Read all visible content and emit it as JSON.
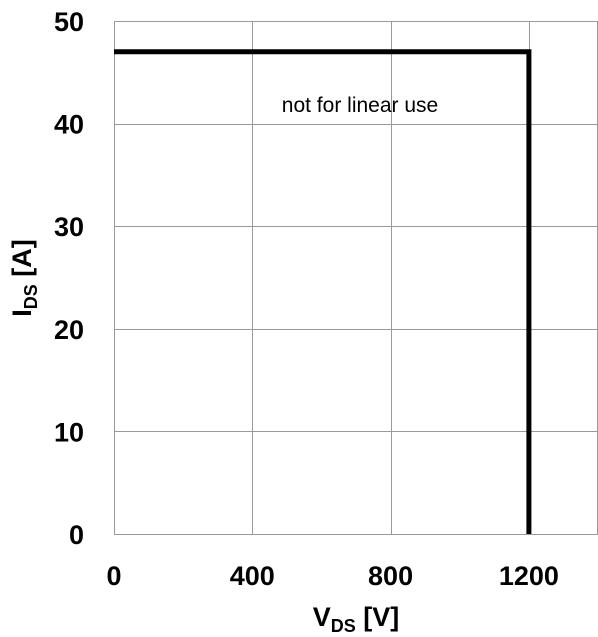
{
  "chart_data": {
    "type": "line",
    "title": "",
    "x_ticks": [
      "0",
      "400",
      "800",
      "1200"
    ],
    "y_ticks": [
      "0",
      "10",
      "20",
      "30",
      "40",
      "50"
    ],
    "xlim": [
      0,
      1400
    ],
    "ylim": [
      0,
      50
    ],
    "grid": true,
    "xlabel": {
      "main": "V",
      "sub": "DS",
      "unit": " [V]"
    },
    "ylabel": {
      "main": "I",
      "sub": "DS",
      "unit": " [A]"
    },
    "annotation": "not for linear use",
    "series": [
      {
        "x": [
          0,
          1200,
          1200
        ],
        "y": [
          47,
          47,
          0
        ],
        "color": "#000000"
      }
    ]
  }
}
